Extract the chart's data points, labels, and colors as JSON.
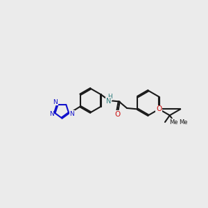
{
  "background_color": "#ebebeb",
  "bond_color": "#1a1a1a",
  "nitrogen_color": "#1010cc",
  "oxygen_color": "#cc1010",
  "nh_color": "#2a7a7a",
  "lw": 1.5,
  "dbo": 0.028,
  "fig_width": 3.0,
  "fig_height": 3.0,
  "dpi": 100,
  "xlim": [
    0.0,
    10.0
  ],
  "ylim": [
    2.5,
    7.5
  ]
}
